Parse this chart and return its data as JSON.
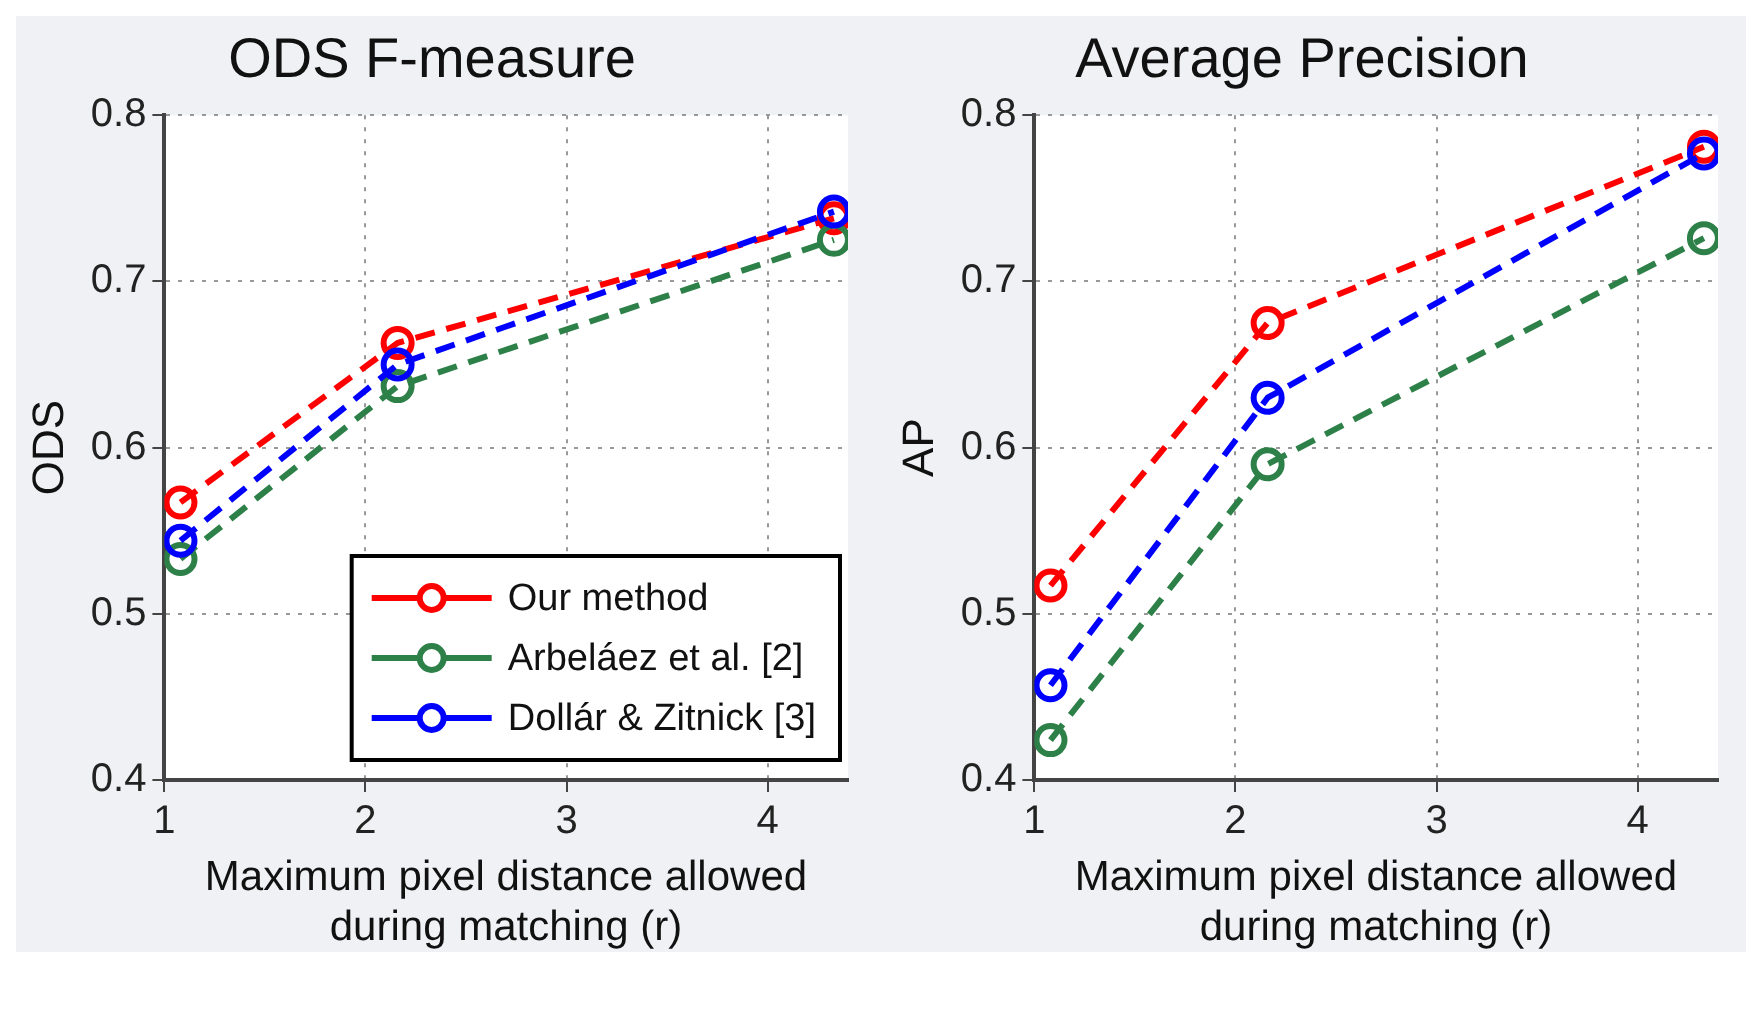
{
  "chart_data": [
    {
      "type": "line",
      "title": "ODS F-measure",
      "xlabel": "Maximum pixel distance allowed during matching (r)",
      "ylabel": "ODS",
      "xlim": [
        1,
        4.4
      ],
      "xticks": [
        1,
        2,
        3,
        4
      ],
      "ylim": [
        0.4,
        0.8
      ],
      "yticks": [
        0.4,
        0.5,
        0.6,
        0.7,
        0.8
      ],
      "grid": true,
      "legend": "bottom right",
      "marker": "circle",
      "line_style": "dashed",
      "series": [
        {
          "name": "Our method",
          "color": "#ff0000",
          "x": [
            1.08,
            2.16,
            4.33
          ],
          "values": [
            0.567,
            0.663,
            0.738
          ]
        },
        {
          "name": "Arbeláez et al. [2]",
          "color": "#2e8049",
          "x": [
            1.08,
            2.16,
            4.33
          ],
          "values": [
            0.533,
            0.637,
            0.725
          ]
        },
        {
          "name": "Dollár & Zitnick [3]",
          "color": "#0000ff",
          "x": [
            1.08,
            2.16,
            4.33
          ],
          "values": [
            0.544,
            0.65,
            0.742
          ]
        }
      ]
    },
    {
      "type": "line",
      "title": "Average Precision",
      "xlabel": "Maximum pixel distance allowed during matching (r)",
      "ylabel": "AP",
      "xlim": [
        1,
        4.4
      ],
      "xticks": [
        1,
        2,
        3,
        4
      ],
      "ylim": [
        0.4,
        0.8
      ],
      "yticks": [
        0.4,
        0.5,
        0.6,
        0.7,
        0.8
      ],
      "grid": true,
      "marker": "circle",
      "line_style": "dashed",
      "series": [
        {
          "color": "#ff0000",
          "x": [
            1.08,
            2.16,
            4.33
          ],
          "values": [
            0.517,
            0.675,
            0.781
          ]
        },
        {
          "color": "#2e8049",
          "x": [
            1.08,
            2.16,
            4.33
          ],
          "values": [
            0.424,
            0.59,
            0.726
          ]
        },
        {
          "color": "#0000ff",
          "x": [
            1.08,
            2.16,
            4.33
          ],
          "values": [
            0.457,
            0.63,
            0.777
          ]
        }
      ]
    }
  ]
}
